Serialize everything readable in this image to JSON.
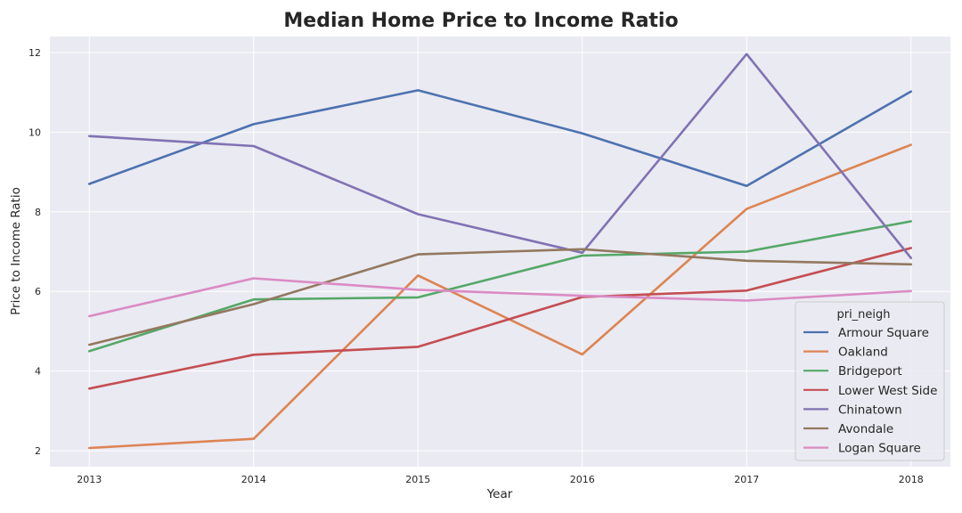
{
  "chart_data": {
    "type": "line",
    "title": "Median Home Price to Income Ratio",
    "xlabel": "Year",
    "ylabel": "Price to Income Ratio",
    "x": [
      2013,
      2014,
      2015,
      2016,
      2017,
      2018
    ],
    "xlim": [
      2012.76,
      2018.24
    ],
    "ylim": [
      1.6,
      12.4
    ],
    "yticks": [
      2,
      4,
      6,
      8,
      10,
      12
    ],
    "grid": true,
    "background": "#eaeaf2",
    "legend": {
      "title": "pri_neigh",
      "placement": "lower-right"
    },
    "series": [
      {
        "name": "Armour Square",
        "color": "#4c72b0",
        "values": [
          8.7,
          10.2,
          11.05,
          9.97,
          8.65,
          11.02
        ]
      },
      {
        "name": "Oakland",
        "color": "#dd8452",
        "values": [
          2.07,
          2.3,
          6.4,
          4.42,
          8.07,
          9.68
        ]
      },
      {
        "name": "Bridgeport",
        "color": "#55a868",
        "values": [
          4.5,
          5.8,
          5.85,
          6.9,
          7.0,
          7.76
        ]
      },
      {
        "name": "Lower West Side",
        "color": "#c44e52",
        "values": [
          3.56,
          4.41,
          4.61,
          5.86,
          6.02,
          7.09
        ]
      },
      {
        "name": "Chinatown",
        "color": "#8172b3",
        "values": [
          9.9,
          9.65,
          7.94,
          6.97,
          11.96,
          6.84
        ]
      },
      {
        "name": "Avondale",
        "color": "#937860",
        "values": [
          4.66,
          5.68,
          6.93,
          7.06,
          6.77,
          6.68
        ]
      },
      {
        "name": "Logan Square",
        "color": "#da8bc3",
        "values": [
          5.38,
          6.33,
          6.04,
          5.89,
          5.77,
          6.01
        ]
      }
    ]
  }
}
